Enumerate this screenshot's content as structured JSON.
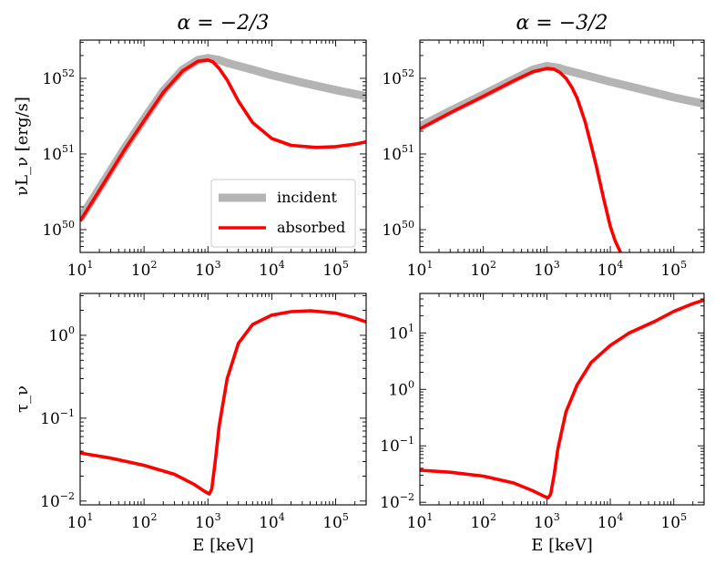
{
  "chart_data": [
    {
      "type": "line",
      "panel": "top-left",
      "title": "α = −2/3",
      "xlabel": "",
      "ylabel": "νL_ν [erg/s]",
      "xscale": "log",
      "yscale": "log",
      "xlim": [
        10,
        300000
      ],
      "ylim": [
        5e+49,
        3.2e+52
      ],
      "x_ticks": [
        {
          "v": 10,
          "e": "1"
        },
        {
          "v": 100,
          "e": "2"
        },
        {
          "v": 1000,
          "e": "3"
        },
        {
          "v": 10000,
          "e": "4"
        },
        {
          "v": 100000,
          "e": "5"
        }
      ],
      "y_ticks": [
        {
          "v": 1e+50,
          "e": "50"
        },
        {
          "v": 1e+51,
          "e": "51"
        },
        {
          "v": 1e+52,
          "e": "52"
        }
      ],
      "legend": {
        "placement": "lower-right",
        "entries": [
          "incident",
          "absorbed"
        ]
      },
      "series": [
        {
          "name": "incident",
          "color": "#b4b4b4",
          "x": [
            10,
            20,
            50,
            100,
            200,
            400,
            700,
            1000,
            1500,
            2000,
            5000,
            10000,
            30000,
            100000,
            300000
          ],
          "y": [
            1.4e+50,
            3.5e+50,
            1.2e+51,
            2.9e+51,
            6.8e+51,
            1.3e+52,
            1.75e+52,
            1.85e+52,
            1.75e+52,
            1.6e+52,
            1.3e+52,
            1.1e+52,
            8.8e+51,
            7e+51,
            5.8e+51
          ]
        },
        {
          "name": "absorbed",
          "color": "#ff0000",
          "x": [
            10,
            20,
            50,
            100,
            200,
            400,
            700,
            1000,
            1200,
            1500,
            2000,
            3000,
            5000,
            10000,
            20000,
            50000,
            100000,
            200000,
            300000
          ],
          "y": [
            1.3e+50,
            3.3e+50,
            1.15e+51,
            2.75e+51,
            6.5e+51,
            1.25e+52,
            1.68e+52,
            1.75e+52,
            1.65e+52,
            1.35e+52,
            9.5e+51,
            5e+51,
            2.6e+51,
            1.6e+51,
            1.3e+51,
            1.22e+51,
            1.25e+51,
            1.35e+51,
            1.45e+51
          ]
        }
      ]
    },
    {
      "type": "line",
      "panel": "top-right",
      "title": "α = −3/2",
      "xlabel": "",
      "ylabel": "",
      "xscale": "log",
      "yscale": "log",
      "xlim": [
        10,
        300000
      ],
      "ylim": [
        5e+49,
        3.2e+52
      ],
      "x_ticks": [
        {
          "v": 10,
          "e": "1"
        },
        {
          "v": 100,
          "e": "2"
        },
        {
          "v": 1000,
          "e": "3"
        },
        {
          "v": 10000,
          "e": "4"
        },
        {
          "v": 100000,
          "e": "5"
        }
      ],
      "y_ticks": [
        {
          "v": 1e+50,
          "e": "50"
        },
        {
          "v": 1e+51,
          "e": "51"
        },
        {
          "v": 1e+52,
          "e": "52"
        }
      ],
      "series": [
        {
          "name": "incident",
          "color": "#b4b4b4",
          "x": [
            10,
            30,
            100,
            300,
            600,
            1000,
            1500,
            2000,
            5000,
            10000,
            30000,
            100000,
            300000
          ],
          "y": [
            2.3e+51,
            3.7e+51,
            6.1e+51,
            9.7e+51,
            1.3e+52,
            1.45e+52,
            1.38e+52,
            1.28e+52,
            1.05e+52,
            9e+51,
            7.2e+51,
            5.6e+51,
            4.6e+51
          ]
        },
        {
          "name": "absorbed",
          "color": "#ff0000",
          "x": [
            10,
            30,
            100,
            300,
            600,
            1000,
            1300,
            1600,
            2000,
            2500,
            3000,
            4000,
            5000,
            6000,
            8000,
            10000,
            12000,
            14500
          ],
          "y": [
            2.15e+51,
            3.5e+51,
            5.8e+51,
            9.3e+51,
            1.22e+52,
            1.35e+52,
            1.32e+52,
            1.2e+52,
            1e+52,
            7.5e+51,
            5.5e+51,
            2.7e+51,
            1.3e+51,
            7e+50,
            2.4e+50,
            1.1e+50,
            7e+49,
            5e+49
          ]
        }
      ]
    },
    {
      "type": "line",
      "panel": "bottom-left",
      "title": "",
      "xlabel": "E [keV]",
      "ylabel": "τ_ν",
      "xscale": "log",
      "yscale": "log",
      "xlim": [
        10,
        300000
      ],
      "ylim": [
        0.009,
        3.2
      ],
      "x_ticks": [
        {
          "v": 10,
          "e": "1"
        },
        {
          "v": 100,
          "e": "2"
        },
        {
          "v": 1000,
          "e": "3"
        },
        {
          "v": 10000,
          "e": "4"
        },
        {
          "v": 100000,
          "e": "5"
        }
      ],
      "y_ticks": [
        {
          "v": 0.01,
          "e": "−2"
        },
        {
          "v": 0.1,
          "e": "−1"
        },
        {
          "v": 1,
          "e": "0"
        }
      ],
      "series": [
        {
          "name": "absorbed",
          "color": "#ff0000",
          "x": [
            10,
            30,
            100,
            300,
            600,
            900,
            1050,
            1150,
            1300,
            1500,
            2000,
            3000,
            5000,
            10000,
            20000,
            40000,
            100000,
            200000,
            300000
          ],
          "y": [
            0.038,
            0.033,
            0.027,
            0.021,
            0.016,
            0.013,
            0.0122,
            0.014,
            0.03,
            0.08,
            0.3,
            0.8,
            1.35,
            1.75,
            1.93,
            1.98,
            1.85,
            1.62,
            1.45
          ]
        }
      ]
    },
    {
      "type": "line",
      "panel": "bottom-right",
      "title": "",
      "xlabel": "E [keV]",
      "ylabel": "",
      "xscale": "log",
      "yscale": "log",
      "xlim": [
        10,
        300000
      ],
      "ylim": [
        0.009,
        50
      ],
      "x_ticks": [
        {
          "v": 10,
          "e": "1"
        },
        {
          "v": 100,
          "e": "2"
        },
        {
          "v": 1000,
          "e": "3"
        },
        {
          "v": 10000,
          "e": "4"
        },
        {
          "v": 100000,
          "e": "5"
        }
      ],
      "y_ticks": [
        {
          "v": 0.01,
          "e": "−2"
        },
        {
          "v": 0.1,
          "e": "−1"
        },
        {
          "v": 1,
          "e": "0"
        },
        {
          "v": 10,
          "e": "1"
        }
      ],
      "series": [
        {
          "name": "absorbed",
          "color": "#ff0000",
          "x": [
            10,
            30,
            100,
            300,
            600,
            900,
            1050,
            1150,
            1300,
            1500,
            2000,
            3000,
            5000,
            10000,
            20000,
            50000,
            100000,
            200000,
            300000
          ],
          "y": [
            0.037,
            0.034,
            0.029,
            0.022,
            0.016,
            0.0128,
            0.012,
            0.014,
            0.03,
            0.09,
            0.4,
            1.2,
            3.0,
            6.0,
            10.0,
            16.0,
            24.0,
            33.0,
            38.0
          ]
        }
      ]
    }
  ]
}
